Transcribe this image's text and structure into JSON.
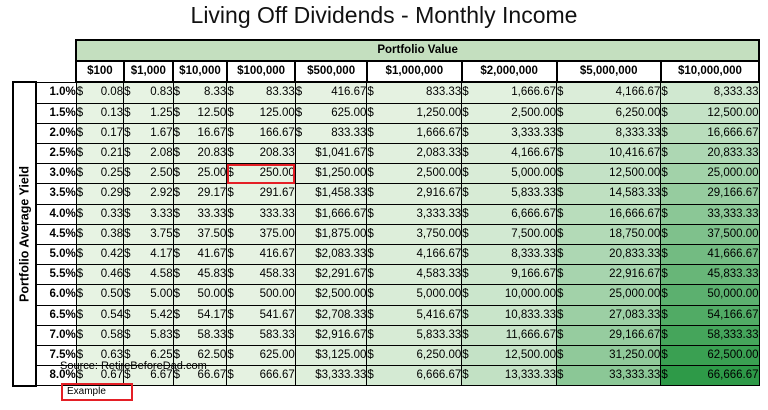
{
  "title": "Living Off Dividends - Monthly Income",
  "source": "Source: RetireBeforeDad.com",
  "legend_example": "Example",
  "colors": {
    "low": "#e7f3e3",
    "high": "#2e9a48",
    "header": "#c4dfbf",
    "highlight": "#e41f26"
  },
  "chart_data": {
    "type": "table",
    "title": "Living Off Dividends - Monthly Income",
    "column_group_label": "Portfolio Value",
    "row_axis_label": "Portfolio Average Yield",
    "columns": [
      "$100",
      "$1,000",
      "$10,000",
      "$100,000",
      "$500,000",
      "$1,000,000",
      "$2,000,000",
      "$5,000,000",
      "$10,000,000"
    ],
    "rows": [
      {
        "yield": "1.0%",
        "values": [
          [
            "$",
            "0.08"
          ],
          [
            "$",
            "0.83"
          ],
          [
            "$",
            "8.33"
          ],
          [
            "$",
            "83.33"
          ],
          [
            "$",
            "416.67"
          ],
          [
            "$",
            "833.33"
          ],
          [
            "$",
            "1,666.67"
          ],
          [
            "$",
            "4,166.67"
          ],
          [
            "$",
            "8,333.33"
          ]
        ]
      },
      {
        "yield": "1.5%",
        "values": [
          [
            "$",
            "0.13"
          ],
          [
            "$",
            "1.25"
          ],
          [
            "$",
            "12.50"
          ],
          [
            "$",
            "125.00"
          ],
          [
            "$",
            "625.00"
          ],
          [
            "$",
            "1,250.00"
          ],
          [
            "$",
            "2,500.00"
          ],
          [
            "$",
            "6,250.00"
          ],
          [
            "$",
            "12,500.00"
          ]
        ]
      },
      {
        "yield": "2.0%",
        "values": [
          [
            "$",
            "0.17"
          ],
          [
            "$",
            "1.67"
          ],
          [
            "$",
            "16.67"
          ],
          [
            "$",
            "166.67"
          ],
          [
            "$",
            "833.33"
          ],
          [
            "$",
            "1,666.67"
          ],
          [
            "$",
            "3,333.33"
          ],
          [
            "$",
            "8,333.33"
          ],
          [
            "$",
            "16,666.67"
          ]
        ]
      },
      {
        "yield": "2.5%",
        "values": [
          [
            "$",
            "0.21"
          ],
          [
            "$",
            "2.08"
          ],
          [
            "$",
            "20.83"
          ],
          [
            "$",
            "208.33"
          ],
          [
            "",
            "$1,041.67"
          ],
          [
            "$",
            "2,083.33"
          ],
          [
            "$",
            "4,166.67"
          ],
          [
            "$",
            "10,416.67"
          ],
          [
            "$",
            "20,833.33"
          ]
        ]
      },
      {
        "yield": "3.0%",
        "values": [
          [
            "$",
            "0.25"
          ],
          [
            "$",
            "2.50"
          ],
          [
            "$",
            "25.00"
          ],
          [
            "$",
            "250.00"
          ],
          [
            "",
            "$1,250.00"
          ],
          [
            "$",
            "2,500.00"
          ],
          [
            "$",
            "5,000.00"
          ],
          [
            "$",
            "12,500.00"
          ],
          [
            "$",
            "25,000.00"
          ]
        ]
      },
      {
        "yield": "3.5%",
        "values": [
          [
            "$",
            "0.29"
          ],
          [
            "$",
            "2.92"
          ],
          [
            "$",
            "29.17"
          ],
          [
            "$",
            "291.67"
          ],
          [
            "",
            "$1,458.33"
          ],
          [
            "$",
            "2,916.67"
          ],
          [
            "$",
            "5,833.33"
          ],
          [
            "$",
            "14,583.33"
          ],
          [
            "$",
            "29,166.67"
          ]
        ]
      },
      {
        "yield": "4.0%",
        "values": [
          [
            "$",
            "0.33"
          ],
          [
            "$",
            "3.33"
          ],
          [
            "$",
            "33.33"
          ],
          [
            "$",
            "333.33"
          ],
          [
            "",
            "$1,666.67"
          ],
          [
            "$",
            "3,333.33"
          ],
          [
            "$",
            "6,666.67"
          ],
          [
            "$",
            "16,666.67"
          ],
          [
            "$",
            "33,333.33"
          ]
        ]
      },
      {
        "yield": "4.5%",
        "values": [
          [
            "$",
            "0.38"
          ],
          [
            "$",
            "3.75"
          ],
          [
            "$",
            "37.50"
          ],
          [
            "$",
            "375.00"
          ],
          [
            "",
            "$1,875.00"
          ],
          [
            "$",
            "3,750.00"
          ],
          [
            "$",
            "7,500.00"
          ],
          [
            "$",
            "18,750.00"
          ],
          [
            "$",
            "37,500.00"
          ]
        ]
      },
      {
        "yield": "5.0%",
        "values": [
          [
            "$",
            "0.42"
          ],
          [
            "$",
            "4.17"
          ],
          [
            "$",
            "41.67"
          ],
          [
            "$",
            "416.67"
          ],
          [
            "",
            "$2,083.33"
          ],
          [
            "$",
            "4,166.67"
          ],
          [
            "$",
            "8,333.33"
          ],
          [
            "$",
            "20,833.33"
          ],
          [
            "$",
            "41,666.67"
          ]
        ]
      },
      {
        "yield": "5.5%",
        "values": [
          [
            "$",
            "0.46"
          ],
          [
            "$",
            "4.58"
          ],
          [
            "$",
            "45.83"
          ],
          [
            "$",
            "458.33"
          ],
          [
            "",
            "$2,291.67"
          ],
          [
            "$",
            "4,583.33"
          ],
          [
            "$",
            "9,166.67"
          ],
          [
            "$",
            "22,916.67"
          ],
          [
            "$",
            "45,833.33"
          ]
        ]
      },
      {
        "yield": "6.0%",
        "values": [
          [
            "$",
            "0.50"
          ],
          [
            "$",
            "5.00"
          ],
          [
            "$",
            "50.00"
          ],
          [
            "$",
            "500.00"
          ],
          [
            "",
            "$2,500.00"
          ],
          [
            "$",
            "5,000.00"
          ],
          [
            "$",
            "10,000.00"
          ],
          [
            "$",
            "25,000.00"
          ],
          [
            "$",
            "50,000.00"
          ]
        ]
      },
      {
        "yield": "6.5%",
        "values": [
          [
            "$",
            "0.54"
          ],
          [
            "$",
            "5.42"
          ],
          [
            "$",
            "54.17"
          ],
          [
            "$",
            "541.67"
          ],
          [
            "",
            "$2,708.33"
          ],
          [
            "$",
            "5,416.67"
          ],
          [
            "$",
            "10,833.33"
          ],
          [
            "$",
            "27,083.33"
          ],
          [
            "$",
            "54,166.67"
          ]
        ]
      },
      {
        "yield": "7.0%",
        "values": [
          [
            "$",
            "0.58"
          ],
          [
            "$",
            "5.83"
          ],
          [
            "$",
            "58.33"
          ],
          [
            "$",
            "583.33"
          ],
          [
            "",
            "$2,916.67"
          ],
          [
            "$",
            "5,833.33"
          ],
          [
            "$",
            "11,666.67"
          ],
          [
            "$",
            "29,166.67"
          ],
          [
            "$",
            "58,333.33"
          ]
        ]
      },
      {
        "yield": "7.5%",
        "values": [
          [
            "$",
            "0.63"
          ],
          [
            "$",
            "6.25"
          ],
          [
            "$",
            "62.50"
          ],
          [
            "$",
            "625.00"
          ],
          [
            "",
            "$3,125.00"
          ],
          [
            "$",
            "6,250.00"
          ],
          [
            "$",
            "12,500.00"
          ],
          [
            "$",
            "31,250.00"
          ],
          [
            "$",
            "62,500.00"
          ]
        ]
      },
      {
        "yield": "8.0%",
        "values": [
          [
            "$",
            "0.67"
          ],
          [
            "$",
            "6.67"
          ],
          [
            "$",
            "66.67"
          ],
          [
            "$",
            "666.67"
          ],
          [
            "",
            "$3,333.33"
          ],
          [
            "$",
            "6,666.67"
          ],
          [
            "$",
            "13,333.33"
          ],
          [
            "$",
            "33,333.33"
          ],
          [
            "$",
            "66,666.67"
          ]
        ]
      }
    ],
    "highlighted_cell": {
      "row": "3.0%",
      "column": "$100,000"
    },
    "color_scale": {
      "min": 0,
      "max": 66666.67
    }
  }
}
